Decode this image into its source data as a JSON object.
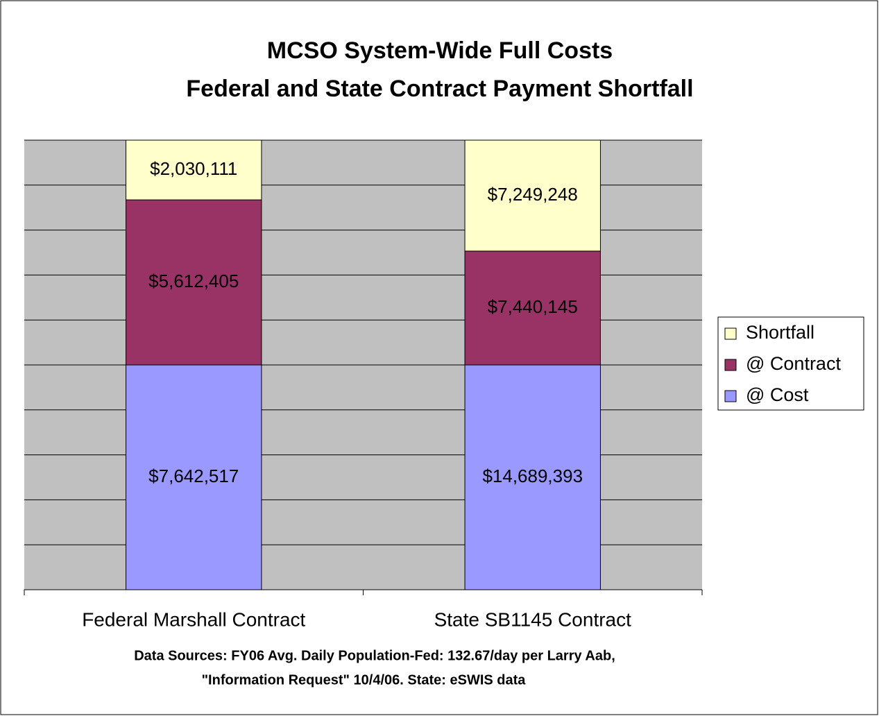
{
  "chart_data": {
    "type": "stacked_bar_percent",
    "title": [
      "MCSO System-Wide Full Costs",
      "Federal and State Contract Payment Shortfall"
    ],
    "footnote": [
      "Data Sources: FY06 Avg. Daily Population-Fed: 132.67/day per Larry Aab,",
      "\"Information Request\" 10/4/06.  State: eSWIS data"
    ],
    "categories": [
      "Federal Marshall Contract",
      "State SB1145 Contract"
    ],
    "series": [
      {
        "name": "@ Cost",
        "color": "#9999ff",
        "values": [
          7642517,
          14689393
        ],
        "value_labels": [
          "$7,642,517",
          "$14,689,393"
        ]
      },
      {
        "name": "@ Contract",
        "color": "#993366",
        "values": [
          5612405,
          7440145
        ],
        "value_labels": [
          "$5,612,405",
          "$7,440,145"
        ]
      },
      {
        "name": "Shortfall",
        "color": "#ffffcc",
        "values": [
          2030111,
          7249248
        ],
        "value_labels": [
          "$2,030,111",
          "$7,249,248"
        ]
      }
    ],
    "ylim": [
      0,
      100
    ],
    "yticks": [
      0,
      10,
      20,
      30,
      40,
      50,
      60,
      70,
      80,
      90,
      100
    ],
    "grid": true,
    "legend": "right",
    "plot_background": "#c0c0c0"
  }
}
